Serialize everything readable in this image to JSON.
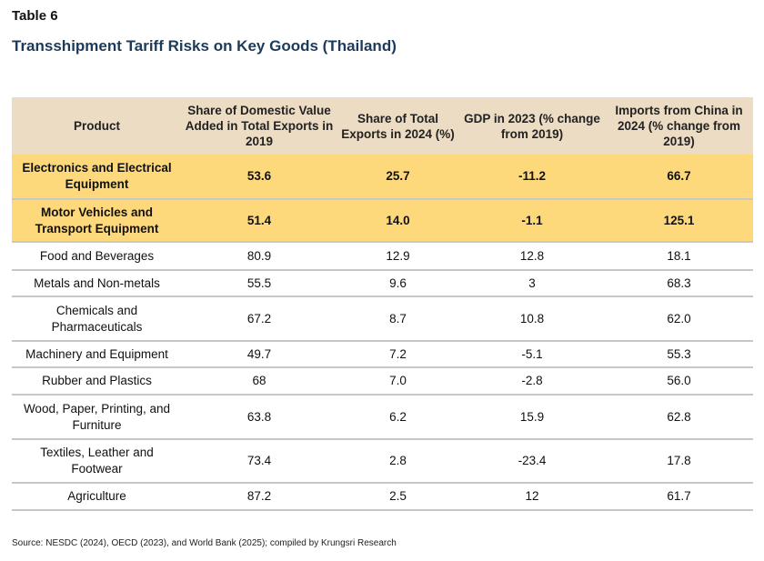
{
  "label": "Table 6",
  "title": "Transshipment Tariff Risks on Key Goods (Thailand)",
  "table": {
    "headers": [
      "Product",
      "Share of Domestic Value Added in Total Exports in 2019",
      "Share of Total Exports in 2024 (%)",
      "GDP in 2023 (% change from 2019)",
      "Imports from China in 2024 (% change from 2019)"
    ],
    "rows": [
      {
        "cells": [
          "Electronics and Electrical Equipment",
          "53.6",
          "25.7",
          "-11.2",
          "66.7"
        ],
        "highlight": true
      },
      {
        "cells": [
          "Motor Vehicles and Transport Equipment",
          "51.4",
          "14.0",
          "-1.1",
          "125.1"
        ],
        "highlight": true
      },
      {
        "cells": [
          "Food and Beverages",
          "80.9",
          "12.9",
          "12.8",
          "18.1"
        ]
      },
      {
        "cells": [
          "Metals and Non-metals",
          "55.5",
          "9.6",
          "3",
          "68.3"
        ]
      },
      {
        "cells": [
          "Chemicals and Pharmaceuticals",
          "67.2",
          "8.7",
          "10.8",
          "62.0"
        ]
      },
      {
        "cells": [
          "Machinery and Equipment",
          "49.7",
          "7.2",
          "-5.1",
          "55.3"
        ]
      },
      {
        "cells": [
          "Rubber and Plastics",
          "68",
          "7.0",
          "-2.8",
          "56.0"
        ]
      },
      {
        "cells": [
          "Wood, Paper, Printing, and Furniture",
          "63.8",
          "6.2",
          "15.9",
          "62.8"
        ]
      },
      {
        "cells": [
          "Textiles, Leather and Footwear",
          "73.4",
          "2.8",
          "-23.4",
          "17.8"
        ]
      },
      {
        "cells": [
          "Agriculture",
          "87.2",
          "2.5",
          "12",
          "61.7"
        ]
      }
    ]
  },
  "colors": {
    "header_bg": "#ecdcc3",
    "highlight_bg": "#fed97c",
    "title": "#1c3a5a"
  },
  "source": "Source: NESDC (2024), OECD (2023), and World Bank (2025); compiled by Krungsri Research"
}
